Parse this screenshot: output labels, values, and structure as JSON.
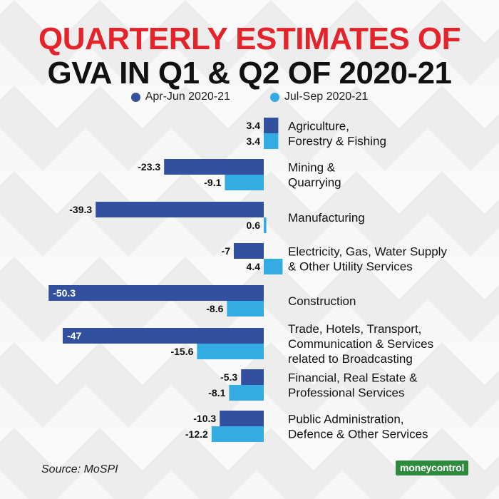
{
  "title_line1": "QUARTERLY ESTIMATES OF",
  "title_line2": "GVA IN Q1 & Q2 OF 2020-21",
  "legend": [
    {
      "label": "Apr-Jun 2020-21",
      "color": "#33509e"
    },
    {
      "label": "Jul-Sep 2020-21",
      "color": "#35abe3"
    }
  ],
  "source": "Source: MoSPI",
  "logo_text": "moneycontrol",
  "chart_data": {
    "type": "bar",
    "orientation": "horizontal",
    "title": "QUARTERLY ESTIMATES OF GVA IN Q1 & Q2 OF 2020-21",
    "categories": [
      [
        "Agriculture,",
        "Forestry & Fishing"
      ],
      [
        "Mining &",
        "Quarrying"
      ],
      [
        "Manufacturing"
      ],
      [
        "Electricity, Gas, Water Supply",
        "& Other Utility Services"
      ],
      [
        "Construction"
      ],
      [
        "Trade, Hotels, Transport,",
        "Communication & Services",
        "related to Broadcasting"
      ],
      [
        "Financial, Real Estate &",
        "Professional Services"
      ],
      [
        "Public Administration,",
        "Defence & Other Services"
      ]
    ],
    "series": [
      {
        "name": "Apr-Jun 2020-21",
        "color": "#33509e",
        "values": [
          3.4,
          -23.3,
          -39.3,
          -7,
          -50.3,
          -47,
          -5.3,
          -10.3
        ]
      },
      {
        "name": "Jul-Sep 2020-21",
        "color": "#35abe3",
        "values": [
          3.4,
          -9.1,
          0.6,
          4.4,
          -8.6,
          -15.6,
          -8.1,
          -12.2
        ]
      }
    ],
    "grid": false,
    "legend_position": "top"
  }
}
